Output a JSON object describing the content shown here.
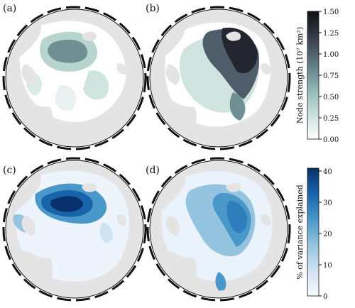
{
  "panels": [
    {
      "label": "(a)"
    },
    {
      "label": "(b)"
    },
    {
      "label": "(c)"
    },
    {
      "label": "(d)"
    }
  ],
  "colorbars": [
    {
      "label": "Node strength (10⁷ km²)",
      "ticks": [
        "1.50",
        "1.25",
        "1.00",
        "0.75",
        "0.50",
        "0.25",
        "0.00"
      ],
      "range": [
        0,
        1.5
      ],
      "colors": [
        "#ffffff",
        "#cfe4df",
        "#9cc1bc",
        "#6f8f94",
        "#4f5d6b",
        "#2b2e3b",
        "#121214"
      ]
    },
    {
      "label": "% of variance explained",
      "ticks": [
        "40",
        "30",
        "20",
        "10",
        "0"
      ],
      "range": [
        0,
        40
      ],
      "colors": [
        "#f7fbff",
        "#d0e1f2",
        "#94c4df",
        "#4a98c9",
        "#1764ab",
        "#08306b"
      ]
    }
  ],
  "colors": {
    "land": "#e4e4e4",
    "ocean": "#ffffff",
    "frame": "#111111"
  }
}
